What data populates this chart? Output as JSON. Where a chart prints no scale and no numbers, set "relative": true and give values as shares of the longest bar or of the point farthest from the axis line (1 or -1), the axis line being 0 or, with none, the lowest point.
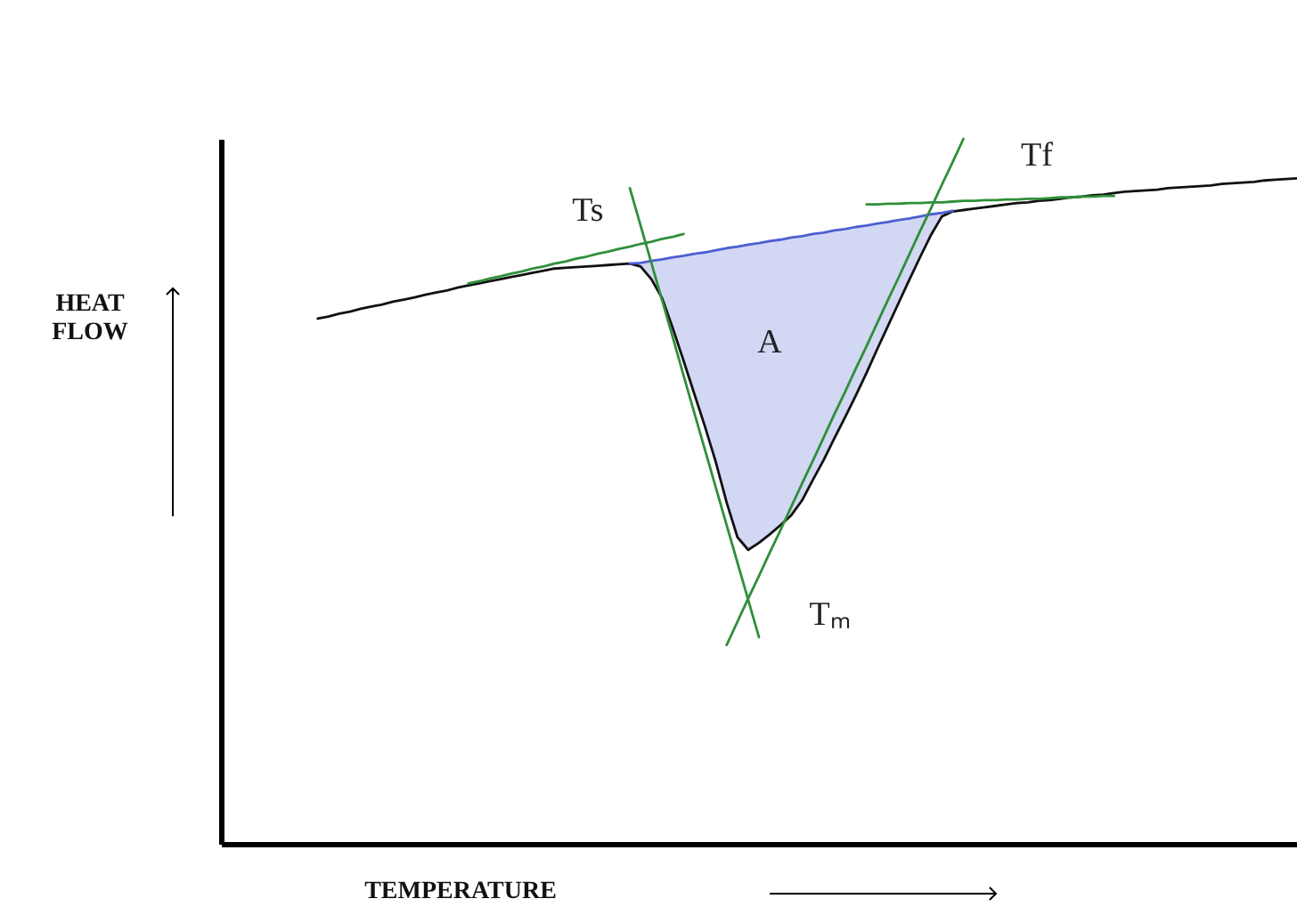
{
  "chart_data": {
    "type": "line",
    "relative": true,
    "xlabel": "TEMPERATURE",
    "ylabel": "HEAT FLOW",
    "categories": [
      null,
      null,
      null,
      null,
      null,
      null,
      null,
      null,
      null,
      null,
      null,
      null,
      null,
      null,
      null,
      null,
      null,
      null,
      null,
      null,
      null,
      null,
      null,
      null,
      null,
      null,
      null,
      null,
      null,
      null,
      null,
      null,
      null,
      null,
      null,
      null,
      null,
      null,
      null,
      null,
      null,
      null,
      null,
      null,
      null,
      null,
      null,
      null,
      null,
      null,
      null,
      null,
      null,
      null,
      null,
      null,
      null,
      null,
      null,
      null,
      null,
      null,
      null,
      null,
      null,
      null,
      null,
      null,
      null,
      null,
      null,
      null,
      null,
      null,
      null,
      null,
      null,
      null,
      null,
      null,
      null,
      null,
      null,
      null,
      null,
      null,
      null,
      null,
      null,
      null,
      null,
      null,
      null,
      null,
      null,
      null,
      null,
      null,
      null,
      null,
      null
    ],
    "series": [
      {
        "color": "#111111",
        "values": [
          null,
          null,
          null,
          null,
          null,
          null,
          null,
          null,
          null,
          0.745,
          0.748,
          0.752,
          0.755,
          0.759,
          0.762,
          0.765,
          0.769,
          0.772,
          0.775,
          0.779,
          0.782,
          0.785,
          0.789,
          0.792,
          0.795,
          0.798,
          0.801,
          0.804,
          0.807,
          0.81,
          0.813,
          0.816,
          0.817,
          0.818,
          0.819,
          0.82,
          0.821,
          0.822,
          0.823,
          0.819,
          0.801,
          0.774,
          0.731,
          0.685,
          0.638,
          0.591,
          0.541,
          0.484,
          0.435,
          0.417,
          0.427,
          0.439,
          0.452,
          0.466,
          0.487,
          0.516,
          0.544,
          0.575,
          0.605,
          0.636,
          0.668,
          0.702,
          0.735,
          0.768,
          0.801,
          0.833,
          0.864,
          0.89,
          0.897,
          0.899,
          0.901,
          0.903,
          0.905,
          0.907,
          0.909,
          0.91,
          0.912,
          0.913,
          0.915,
          0.917,
          0.918,
          0.92,
          0.921,
          0.923,
          0.925,
          0.926,
          0.927,
          0.928,
          0.93,
          0.931,
          0.932,
          0.933,
          0.934,
          0.936,
          0.937,
          0.938,
          0.939,
          0.941,
          0.942,
          0.943,
          0.944
        ]
      },
      {
        "color": "#4b5fd1",
        "values": [
          null,
          null,
          null,
          null,
          null,
          null,
          null,
          null,
          null,
          null,
          null,
          null,
          null,
          null,
          null,
          null,
          null,
          null,
          null,
          null,
          null,
          null,
          null,
          null,
          null,
          null,
          null,
          null,
          null,
          null,
          null,
          null,
          null,
          null,
          null,
          null,
          null,
          null,
          0.823,
          0.824,
          0.827,
          0.829,
          0.832,
          0.834,
          0.837,
          0.839,
          0.842,
          0.845,
          0.847,
          0.85,
          0.852,
          0.855,
          0.857,
          0.86,
          0.862,
          0.865,
          0.867,
          0.87,
          0.872,
          0.875,
          0.877,
          0.88,
          0.882,
          0.885,
          0.887,
          0.89,
          0.893,
          0.895,
          0.898,
          null,
          null,
          null,
          null,
          null,
          null,
          null,
          null,
          null,
          null,
          null,
          null,
          null,
          null,
          null,
          null,
          null,
          null,
          null,
          null,
          null,
          null,
          null,
          null,
          null,
          null,
          null,
          null,
          null,
          null,
          null,
          null
        ],
        "lower": [
          null,
          null,
          null,
          null,
          null,
          null,
          null,
          null,
          null,
          null,
          null,
          null,
          null,
          null,
          null,
          null,
          null,
          null,
          null,
          null,
          null,
          null,
          null,
          null,
          null,
          null,
          null,
          null,
          null,
          null,
          null,
          null,
          null,
          null,
          null,
          null,
          null,
          null,
          0.823,
          0.819,
          0.801,
          0.774,
          0.731,
          0.685,
          0.638,
          0.591,
          0.541,
          0.484,
          0.435,
          0.417,
          0.427,
          0.439,
          0.452,
          0.466,
          0.487,
          0.516,
          0.544,
          0.575,
          0.605,
          0.636,
          0.668,
          0.702,
          0.735,
          0.768,
          0.801,
          0.833,
          0.864,
          0.89,
          0.897,
          null,
          null,
          null,
          null,
          null,
          null,
          null,
          null,
          null,
          null,
          null,
          null,
          null,
          null,
          null,
          null,
          null,
          null,
          null,
          null,
          null,
          null,
          null,
          null,
          null,
          null,
          null,
          null,
          null,
          null,
          null,
          null
        ],
        "upper": [
          null,
          null,
          null,
          null,
          null,
          null,
          null,
          null,
          null,
          null,
          null,
          null,
          null,
          null,
          null,
          null,
          null,
          null,
          null,
          null,
          null,
          null,
          null,
          null,
          null,
          null,
          null,
          null,
          null,
          null,
          null,
          null,
          null,
          null,
          null,
          null,
          null,
          null,
          0.823,
          0.824,
          0.827,
          0.829,
          0.832,
          0.834,
          0.837,
          0.839,
          0.842,
          0.845,
          0.847,
          0.85,
          0.852,
          0.855,
          0.857,
          0.86,
          0.862,
          0.865,
          0.867,
          0.87,
          0.872,
          0.875,
          0.877,
          0.88,
          0.882,
          0.885,
          0.887,
          0.89,
          0.893,
          0.895,
          0.898,
          null,
          null,
          null,
          null,
          null,
          null,
          null,
          null,
          null,
          null,
          null,
          null,
          null,
          null,
          null,
          null,
          null,
          null,
          null,
          null,
          null,
          null,
          null,
          null,
          null,
          null,
          null,
          null,
          null,
          null,
          null,
          null
        ]
      },
      {
        "type": "line",
        "color": "#2f8f3a",
        "values": [
          null,
          null,
          null,
          null,
          null,
          null,
          null,
          null,
          null,
          null,
          null,
          null,
          null,
          null,
          null,
          null,
          null,
          null,
          null,
          null,
          null,
          null,
          null,
          0.795,
          0.798,
          0.802,
          0.805,
          0.809,
          0.812,
          0.816,
          0.819,
          0.823,
          0.826,
          0.83,
          0.833,
          0.837,
          0.84,
          0.844,
          0.847,
          0.851,
          0.854,
          0.858,
          0.861,
          0.865,
          null,
          null,
          null,
          null,
          null,
          null,
          null,
          null,
          null,
          null,
          null,
          null,
          null,
          null,
          null,
          null,
          null,
          null,
          null,
          null,
          null,
          null,
          null,
          null,
          null,
          null,
          null,
          null,
          null,
          null,
          null,
          null,
          null,
          null,
          null,
          null,
          null,
          null,
          null,
          null,
          null,
          null,
          null,
          null,
          null,
          null,
          null,
          null,
          null,
          null,
          null,
          null,
          null,
          null,
          null,
          null,
          null
        ]
      },
      {
        "type": "line",
        "color": "#2f8f3a",
        "values": [
          null,
          null,
          null,
          null,
          null,
          null,
          null,
          null,
          null,
          null,
          null,
          null,
          null,
          null,
          null,
          null,
          null,
          null,
          null,
          null,
          null,
          null,
          null,
          null,
          null,
          null,
          null,
          null,
          null,
          null,
          null,
          null,
          null,
          null,
          null,
          null,
          null,
          null,
          0.93,
          0.877,
          0.824,
          0.771,
          0.718,
          0.664,
          0.611,
          0.558,
          0.505,
          0.452,
          0.399,
          0.346,
          0.293,
          null,
          null,
          null,
          null,
          null,
          null,
          null,
          null,
          null,
          null,
          null,
          null,
          null,
          null,
          null,
          null,
          null,
          null,
          null,
          null,
          null,
          null,
          null,
          null,
          null,
          null,
          null,
          null,
          null,
          null,
          null,
          null,
          null,
          null,
          null,
          null,
          null,
          null,
          null,
          null,
          null,
          null,
          null,
          null,
          null,
          null,
          null,
          null,
          null,
          null
        ]
      },
      {
        "type": "line",
        "color": "#2f8f3a",
        "values": [
          null,
          null,
          null,
          null,
          null,
          null,
          null,
          null,
          null,
          null,
          null,
          null,
          null,
          null,
          null,
          null,
          null,
          null,
          null,
          null,
          null,
          null,
          null,
          null,
          null,
          null,
          null,
          null,
          null,
          null,
          null,
          null,
          null,
          null,
          null,
          null,
          null,
          null,
          null,
          null,
          null,
          null,
          null,
          null,
          null,
          null,
          null,
          0.282,
          0.315,
          0.348,
          0.38,
          0.413,
          0.445,
          0.478,
          0.511,
          0.543,
          0.576,
          0.609,
          0.641,
          0.674,
          0.706,
          0.739,
          0.772,
          0.804,
          0.837,
          0.87,
          0.902,
          0.935,
          0.967,
          1.0,
          null,
          null,
          null,
          null,
          null,
          null,
          null,
          null,
          null,
          null,
          null,
          null,
          null,
          null,
          null,
          null,
          null,
          null,
          null,
          null,
          null,
          null,
          null,
          null,
          null,
          null,
          null,
          null,
          null,
          null,
          null
        ]
      },
      {
        "type": "line",
        "color": "#2f8f3a",
        "values": [
          null,
          null,
          null,
          null,
          null,
          null,
          null,
          null,
          null,
          null,
          null,
          null,
          null,
          null,
          null,
          null,
          null,
          null,
          null,
          null,
          null,
          null,
          null,
          null,
          null,
          null,
          null,
          null,
          null,
          null,
          null,
          null,
          null,
          null,
          null,
          null,
          null,
          null,
          null,
          null,
          null,
          null,
          null,
          null,
          null,
          null,
          null,
          null,
          null,
          null,
          null,
          null,
          null,
          null,
          null,
          null,
          null,
          null,
          null,
          null,
          0.907,
          0.907,
          0.908,
          0.908,
          0.909,
          0.909,
          0.91,
          0.91,
          0.911,
          0.912,
          0.912,
          0.913,
          0.913,
          0.914,
          0.914,
          0.915,
          0.915,
          0.916,
          0.917,
          0.917,
          0.918,
          0.918,
          0.919,
          0.919,
          null,
          null,
          null,
          null,
          null,
          null,
          null,
          null,
          null,
          null,
          null,
          null,
          null,
          null,
          null,
          null,
          null
        ]
      }
    ],
    "annotations": [
      "Ts",
      "Tf",
      "A",
      "Tₘ"
    ]
  }
}
